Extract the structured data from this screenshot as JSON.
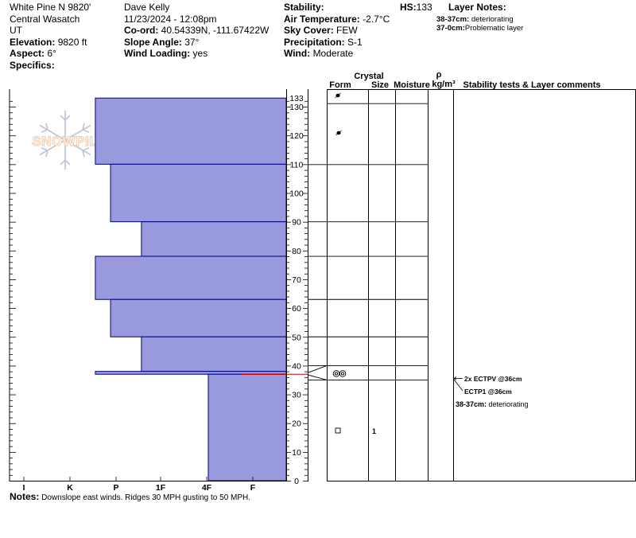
{
  "header": {
    "location": "White Pine N 9820'",
    "range": "Central Wasatch",
    "state": "UT",
    "elevation_label": "Elevation:",
    "elevation": "9820 ft",
    "aspect_label": "Aspect:",
    "aspect": "6°",
    "specifics_label": "Specifics:",
    "observer": "Dave Kelly",
    "datetime": "11/23/2024 - 12:08pm",
    "coord_label": "Co-ord:",
    "coord": "40.54339N, -111.67422W",
    "slope_label": "Slope Angle:",
    "slope": "37°",
    "wind_loading_label": "Wind Loading:",
    "wind_loading": "yes",
    "stability_label": "Stability:",
    "air_temp_label": "Air Temperature:",
    "air_temp": "-2.7°C",
    "sky_label": "Sky Cover:",
    "sky": "FEW",
    "precip_label": "Precipitation:",
    "precip": "S-1",
    "wind_label": "Wind:",
    "wind": "Moderate",
    "hs_label": "HS:",
    "hs": "133"
  },
  "layer_notes": {
    "title": "Layer Notes:",
    "items": [
      {
        "depth": "38-37cm:",
        "text": "deteriorating"
      },
      {
        "depth": "37-0cm:",
        "text": "Problematic layer"
      }
    ]
  },
  "logo_text": "SNOWPILOT",
  "columns": {
    "crystal": "Crystal",
    "form": "Form",
    "size": "Size",
    "moisture": "Moisture",
    "rho": "ρ",
    "density_unit": "kg/m³",
    "comments": "Stability tests & Layer comments"
  },
  "chart_data": {
    "type": "bar",
    "title": "",
    "xlabel": "",
    "ylabel": "",
    "hardness_categories": [
      "I",
      "K",
      "P",
      "1F",
      "4F",
      "F"
    ],
    "ylim": [
      0,
      133
    ],
    "y_ticks": [
      0,
      10,
      20,
      30,
      40,
      50,
      60,
      70,
      80,
      90,
      100,
      110,
      120,
      130
    ],
    "hs_tick": "133",
    "layers": [
      {
        "top": 133,
        "bottom": 110,
        "hardness": 3.45
      },
      {
        "top": 110,
        "bottom": 90,
        "hardness": 3.12
      },
      {
        "top": 90,
        "bottom": 78,
        "hardness": 2.45
      },
      {
        "top": 78,
        "bottom": 63,
        "hardness": 3.45
      },
      {
        "top": 63,
        "bottom": 50,
        "hardness": 3.12
      },
      {
        "top": 50,
        "bottom": 38,
        "hardness": 2.45
      },
      {
        "top": 38,
        "bottom": 37,
        "hardness": 3.45
      },
      {
        "top": 37,
        "bottom": 0,
        "hardness": 1.0
      }
    ],
    "layer_boundaries_right": [
      110,
      90,
      78,
      63,
      50,
      40,
      35
    ],
    "red_line_depth": 37,
    "tests": [
      {
        "text": "2x ECTPV @36cm",
        "depth": 36
      },
      {
        "text": "ECTP1 @36cm",
        "depth": 36
      }
    ],
    "layer_comment": "38-37cm: deteriorating",
    "size_values": [
      {
        "depth": 17,
        "value": "1"
      }
    ],
    "colors": {
      "fill": "#9999dd",
      "stroke": "#000080",
      "red": "#cc0000"
    }
  }
}
